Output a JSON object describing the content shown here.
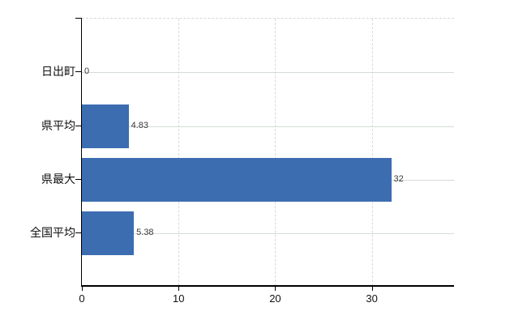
{
  "chart_data": {
    "type": "bar",
    "orientation": "horizontal",
    "categories": [
      "日出町",
      "県平均",
      "県最大",
      "全国平均"
    ],
    "values": [
      0,
      4.83,
      32,
      5.38
    ],
    "value_labels": [
      "0",
      "4.83",
      "32",
      "5.38"
    ],
    "x_ticks": [
      "0",
      "10",
      "20",
      "30"
    ],
    "x_tick_values": [
      0,
      10,
      20,
      30
    ],
    "xlim": [
      0,
      38.5
    ],
    "grid": "both",
    "legend": false,
    "colors": {
      "bar": "#3c6db1",
      "grid_horizontal": "#d4dcd4",
      "grid_vertical": "#d9d9d9",
      "axis": "#000000",
      "background": "#ffffff",
      "value_label": "#3a3a3a",
      "tick_label": "#111111"
    }
  }
}
